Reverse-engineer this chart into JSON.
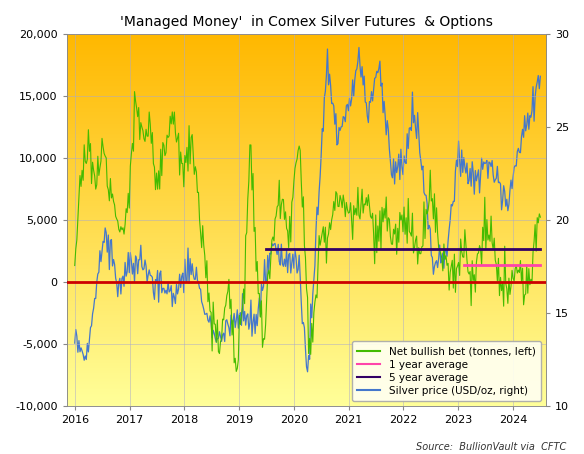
{
  "title": "'Managed Money'  in Comex Silver Futures  & Options",
  "source_text": "Source:  BullionVault via  CFTC",
  "ylim_left": [
    -10000,
    20000
  ],
  "ylim_right": [
    10,
    30
  ],
  "yticks_left": [
    -10000,
    -5000,
    0,
    5000,
    10000,
    15000,
    20000
  ],
  "yticks_right": [
    10,
    15,
    20,
    25,
    30
  ],
  "xticks": [
    2016,
    2017,
    2018,
    2019,
    2020,
    2021,
    2022,
    2023,
    2024
  ],
  "xlim": [
    2015.85,
    2024.6
  ],
  "bg_color_top": "#FFB800",
  "bg_color_bottom": "#FFFF99",
  "grid_color": "#AAAACC",
  "grid_alpha": 0.7,
  "zero_line_color": "#CC0000",
  "one_yr_avg_color": "#FF44AA",
  "five_yr_avg_color": "#330066",
  "net_bet_color": "#44BB00",
  "silver_price_color": "#4477CC",
  "one_yr_avg_value": 1400,
  "five_yr_avg_value": 2700,
  "five_yr_avg_start": 2019.5,
  "one_yr_avg_start": 2023.1,
  "legend_labels": [
    "Net bullish bet (tonnes, left)",
    "1 year average",
    "5 year average",
    "Silver price (USD/oz, right)"
  ],
  "title_fontsize": 10,
  "tick_fontsize": 8,
  "legend_fontsize": 7.5,
  "source_fontsize": 7
}
